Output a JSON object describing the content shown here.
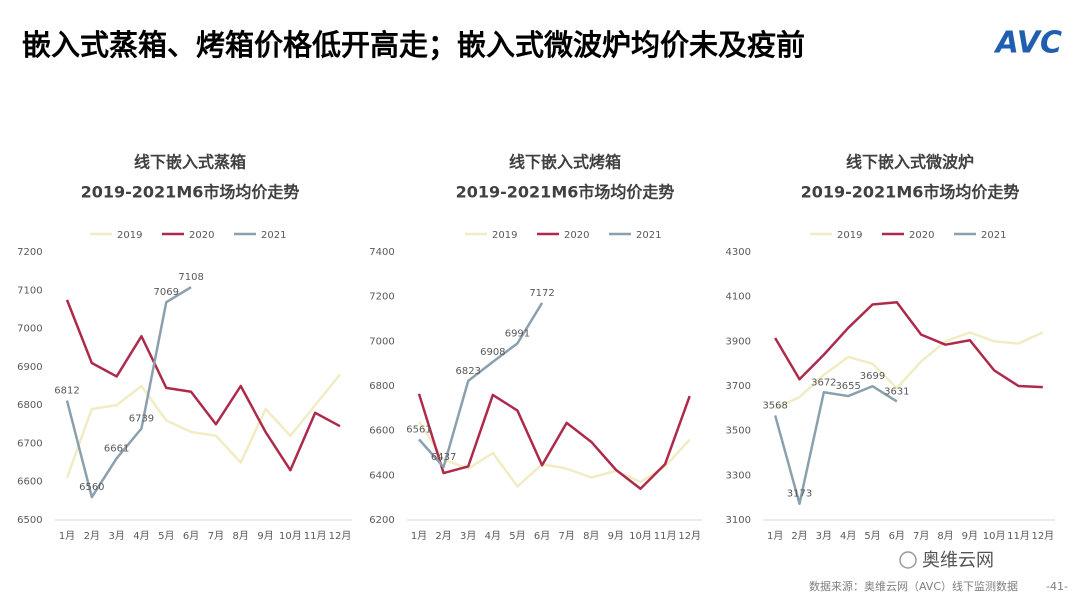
{
  "header": {
    "title": "嵌入式蒸箱、烤箱价格低开高走；嵌入式微波炉均价未及疫前",
    "logo": "AVC"
  },
  "footer": {
    "source": "数据来源：奥维云网（AVC）线下监测数据",
    "page": "-41-",
    "wechat": "奥维云网"
  },
  "chart_data": [
    {
      "type": "line",
      "title": "线下嵌入式蒸箱",
      "subtitle": "2019-2021M6市场均价走势",
      "categories": [
        "1月",
        "2月",
        "3月",
        "4月",
        "5月",
        "6月",
        "7月",
        "8月",
        "9月",
        "10月",
        "11月",
        "12月"
      ],
      "ylim": [
        6500,
        7200
      ],
      "yticks": [
        6500,
        6600,
        6700,
        6800,
        6900,
        7000,
        7100,
        7200
      ],
      "legend": "top",
      "series": [
        {
          "name": "2019",
          "color": "#f2ecc4",
          "values": [
            6610,
            6790,
            6800,
            6850,
            6760,
            6730,
            6720,
            6650,
            6790,
            6720,
            6800,
            6880
          ]
        },
        {
          "name": "2020",
          "color": "#ad2a4b",
          "values": [
            7075,
            6910,
            6875,
            6980,
            6845,
            6835,
            6750,
            6850,
            6730,
            6630,
            6780,
            6745
          ]
        },
        {
          "name": "2021",
          "color": "#8ba0ae",
          "show_labels": true,
          "values": [
            6812,
            6560,
            6661,
            6739,
            7069,
            7108,
            null,
            null,
            null,
            null,
            null,
            null
          ]
        }
      ]
    },
    {
      "type": "line",
      "title": "线下嵌入式烤箱",
      "subtitle": "2019-2021M6市场均价走势",
      "categories": [
        "1月",
        "2月",
        "3月",
        "4月",
        "5月",
        "6月",
        "7月",
        "8月",
        "9月",
        "10月",
        "11月",
        "12月"
      ],
      "ylim": [
        6200,
        7400
      ],
      "yticks": [
        6200,
        6400,
        6600,
        6800,
        7000,
        7200,
        7400
      ],
      "legend": "top",
      "series": [
        {
          "name": "2019",
          "color": "#f2ecc4",
          "values": [
            6640,
            6470,
            6430,
            6500,
            6350,
            6450,
            6430,
            6390,
            6420,
            6370,
            6440,
            6560
          ]
        },
        {
          "name": "2020",
          "color": "#ad2a4b",
          "values": [
            6765,
            6410,
            6440,
            6760,
            6690,
            6445,
            6635,
            6550,
            6425,
            6340,
            6450,
            6755
          ]
        },
        {
          "name": "2021",
          "color": "#8ba0ae",
          "show_labels": true,
          "values": [
            6561,
            6437,
            6823,
            6908,
            6991,
            7172,
            null,
            null,
            null,
            null,
            null,
            null
          ]
        }
      ]
    },
    {
      "type": "line",
      "title": "线下嵌入式微波炉",
      "subtitle": "2019-2021M6市场均价走势",
      "categories": [
        "1月",
        "2月",
        "3月",
        "4月",
        "5月",
        "6月",
        "7月",
        "8月",
        "9月",
        "10月",
        "11月",
        "12月"
      ],
      "ylim": [
        3100,
        4300
      ],
      "yticks": [
        3100,
        3300,
        3500,
        3700,
        3900,
        4100,
        4300
      ],
      "legend": "top",
      "series": [
        {
          "name": "2019",
          "color": "#f2ecc4",
          "values": [
            3600,
            3650,
            3750,
            3830,
            3800,
            3690,
            3810,
            3900,
            3940,
            3900,
            3890,
            3940
          ]
        },
        {
          "name": "2020",
          "color": "#ad2a4b",
          "values": [
            3915,
            3730,
            3840,
            3960,
            4065,
            4075,
            3930,
            3885,
            3905,
            3770,
            3700,
            3695
          ]
        },
        {
          "name": "2021",
          "color": "#8ba0ae",
          "show_labels": true,
          "values": [
            3568,
            3173,
            3672,
            3655,
            3699,
            3631,
            null,
            null,
            null,
            null,
            null,
            null
          ]
        }
      ]
    }
  ]
}
